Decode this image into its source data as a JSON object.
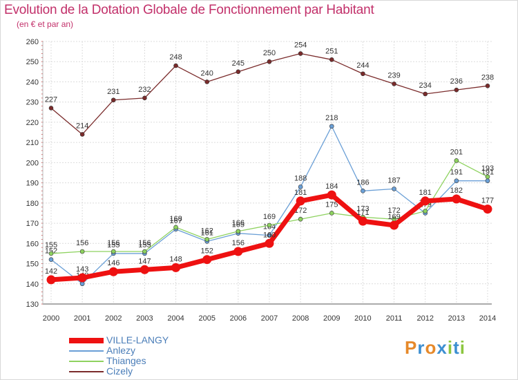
{
  "header": {
    "title": "Evolution de la Dotation Globale de Fonctionnement par Habitant",
    "subtitle": "(en € et par an)"
  },
  "logo": {
    "text": "Proxiti",
    "letters": [
      "P",
      "r",
      "o",
      "x",
      "i",
      "t",
      "i"
    ],
    "colors": [
      "#e6892a",
      "#3d8fd1",
      "#e6892a",
      "#3d8fd1",
      "#8cc63f",
      "#3d8fd1",
      "#8cc63f"
    ]
  },
  "chart_data": {
    "type": "line",
    "title": "Evolution de la Dotation Globale de Fonctionnement par Habitant",
    "subtitle": "(en € et par an)",
    "xlabel": "",
    "ylabel": "",
    "x": [
      "2000",
      "2001",
      "2002",
      "2003",
      "2004",
      "2005",
      "2006",
      "2007",
      "2008",
      "2009",
      "2010",
      "2011",
      "2012",
      "2013",
      "2014"
    ],
    "ylim": [
      130,
      260
    ],
    "yticks": [
      130,
      140,
      150,
      160,
      170,
      180,
      190,
      200,
      210,
      220,
      230,
      240,
      250,
      260
    ],
    "grid": true,
    "legend_position": "bottom-left",
    "series": [
      {
        "name": "Cizely",
        "color": "#7a2b2b",
        "values": [
          227,
          214,
          231,
          232,
          248,
          240,
          245,
          250,
          254,
          251,
          244,
          239,
          234,
          236,
          238
        ]
      },
      {
        "name": "Anlezy",
        "color": "#6a9fd6",
        "values": [
          152,
          140,
          155,
          155,
          167,
          161,
          165,
          164,
          188,
          218,
          186,
          187,
          175,
          191,
          191
        ]
      },
      {
        "name": "Thianges",
        "color": "#8ed25f",
        "values": [
          155,
          156,
          156,
          156,
          168,
          162,
          166,
          169,
          172,
          175,
          173,
          172,
          176,
          201,
          193
        ]
      },
      {
        "name": "VILLE-LANGY",
        "color": "#ee1111",
        "values": [
          142,
          143,
          146,
          147,
          148,
          152,
          156,
          160,
          181,
          184,
          171,
          169,
          181,
          182,
          177
        ]
      }
    ],
    "legend_order": [
      "VILLE-LANGY",
      "Anlezy",
      "Thianges",
      "Cizely"
    ]
  }
}
